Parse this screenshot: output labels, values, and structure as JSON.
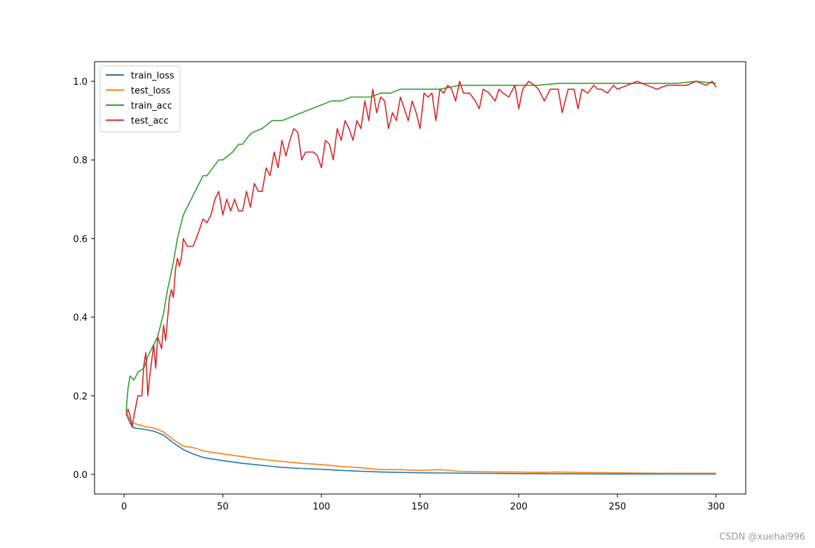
{
  "watermark": "CSDN @xuehai996",
  "chart_data": {
    "type": "line",
    "xlim": [
      -15,
      315
    ],
    "ylim": [
      -0.05,
      1.05
    ],
    "xticks": [
      0,
      50,
      100,
      150,
      200,
      250,
      300
    ],
    "yticks": [
      0.0,
      0.2,
      0.4,
      0.6,
      0.8,
      1.0
    ],
    "xtick_labels": [
      "0",
      "50",
      "100",
      "150",
      "200",
      "250",
      "300"
    ],
    "ytick_labels": [
      "0.0",
      "0.2",
      "0.4",
      "0.6",
      "0.8",
      "1.0"
    ],
    "grid": false,
    "legend_position": "upper-left",
    "colors": {
      "train_loss": "#1f77b4",
      "test_loss": "#ff7f0e",
      "train_acc": "#2ca02c",
      "test_acc": "#d62728"
    },
    "series": [
      {
        "name": "train_loss",
        "x": [
          1,
          3,
          5,
          10,
          15,
          20,
          25,
          30,
          35,
          40,
          50,
          60,
          70,
          80,
          90,
          100,
          110,
          120,
          130,
          150,
          175,
          200,
          250,
          300
        ],
        "y": [
          0.155,
          0.13,
          0.118,
          0.115,
          0.11,
          0.1,
          0.08,
          0.063,
          0.052,
          0.043,
          0.035,
          0.028,
          0.023,
          0.018,
          0.015,
          0.013,
          0.01,
          0.008,
          0.006,
          0.004,
          0.003,
          0.002,
          0.001,
          0.001
        ]
      },
      {
        "name": "test_loss",
        "x": [
          1,
          3,
          5,
          10,
          15,
          20,
          25,
          30,
          35,
          40,
          50,
          60,
          70,
          80,
          90,
          100,
          110,
          120,
          130,
          140,
          150,
          160,
          170,
          180,
          190,
          200,
          210,
          220,
          230,
          250,
          275,
          300
        ],
        "y": [
          0.16,
          0.138,
          0.13,
          0.122,
          0.118,
          0.108,
          0.088,
          0.072,
          0.068,
          0.06,
          0.052,
          0.045,
          0.038,
          0.033,
          0.028,
          0.025,
          0.02,
          0.017,
          0.012,
          0.012,
          0.01,
          0.012,
          0.008,
          0.007,
          0.006,
          0.006,
          0.005,
          0.006,
          0.005,
          0.004,
          0.003,
          0.003
        ]
      },
      {
        "name": "train_acc",
        "x": [
          1,
          2,
          3,
          5,
          7,
          10,
          12,
          15,
          17,
          20,
          22,
          25,
          27,
          30,
          32,
          35,
          38,
          40,
          42,
          45,
          48,
          50,
          55,
          58,
          60,
          63,
          65,
          70,
          75,
          78,
          80,
          85,
          90,
          95,
          100,
          105,
          110,
          115,
          120,
          125,
          130,
          135,
          140,
          145,
          150,
          160,
          170,
          180,
          190,
          200,
          210,
          220,
          230,
          240,
          250,
          260,
          270,
          280,
          290,
          300
        ],
        "y": [
          0.16,
          0.22,
          0.25,
          0.24,
          0.26,
          0.27,
          0.3,
          0.33,
          0.35,
          0.41,
          0.47,
          0.54,
          0.6,
          0.66,
          0.68,
          0.71,
          0.74,
          0.76,
          0.76,
          0.78,
          0.8,
          0.8,
          0.82,
          0.84,
          0.84,
          0.86,
          0.87,
          0.88,
          0.9,
          0.9,
          0.9,
          0.91,
          0.92,
          0.93,
          0.94,
          0.95,
          0.95,
          0.96,
          0.96,
          0.96,
          0.97,
          0.97,
          0.98,
          0.98,
          0.98,
          0.98,
          0.99,
          0.99,
          0.99,
          0.99,
          0.99,
          0.995,
          0.995,
          0.995,
          0.995,
          0.995,
          0.995,
          0.995,
          1.0,
          0.995
        ]
      },
      {
        "name": "test_acc",
        "x": [
          1,
          2,
          3,
          4,
          5,
          7,
          9,
          10,
          11,
          12,
          13,
          15,
          16,
          17,
          19,
          20,
          21,
          23,
          24,
          25,
          26,
          27,
          28,
          29,
          30,
          32,
          35,
          38,
          40,
          42,
          44,
          46,
          48,
          50,
          52,
          54,
          56,
          58,
          60,
          62,
          64,
          66,
          68,
          70,
          72,
          74,
          76,
          78,
          80,
          82,
          84,
          86,
          88,
          90,
          92,
          94,
          96,
          98,
          100,
          102,
          104,
          106,
          108,
          110,
          112,
          114,
          116,
          118,
          120,
          122,
          124,
          126,
          128,
          130,
          132,
          134,
          136,
          138,
          140,
          142,
          144,
          146,
          148,
          150,
          152,
          154,
          156,
          158,
          160,
          162,
          164,
          166,
          168,
          170,
          172,
          175,
          178,
          180,
          182,
          185,
          188,
          190,
          192,
          195,
          198,
          200,
          202,
          205,
          208,
          210,
          213,
          216,
          220,
          222,
          225,
          228,
          230,
          232,
          235,
          238,
          240,
          242,
          245,
          248,
          250,
          255,
          260,
          265,
          270,
          275,
          280,
          285,
          290,
          295,
          298,
          300
        ],
        "y": [
          0.15,
          0.166,
          0.15,
          0.12,
          0.15,
          0.2,
          0.2,
          0.28,
          0.31,
          0.2,
          0.25,
          0.33,
          0.27,
          0.35,
          0.32,
          0.38,
          0.34,
          0.45,
          0.47,
          0.45,
          0.52,
          0.55,
          0.53,
          0.55,
          0.6,
          0.58,
          0.58,
          0.62,
          0.65,
          0.64,
          0.66,
          0.7,
          0.72,
          0.66,
          0.7,
          0.67,
          0.7,
          0.67,
          0.67,
          0.72,
          0.68,
          0.74,
          0.72,
          0.72,
          0.78,
          0.76,
          0.82,
          0.78,
          0.85,
          0.81,
          0.85,
          0.88,
          0.87,
          0.8,
          0.82,
          0.82,
          0.82,
          0.81,
          0.78,
          0.85,
          0.84,
          0.8,
          0.88,
          0.85,
          0.9,
          0.88,
          0.85,
          0.9,
          0.88,
          0.95,
          0.9,
          0.98,
          0.92,
          0.96,
          0.95,
          0.88,
          0.92,
          0.9,
          0.96,
          0.93,
          0.9,
          0.95,
          0.92,
          0.88,
          0.97,
          0.96,
          0.97,
          0.9,
          0.98,
          0.97,
          0.99,
          0.98,
          0.95,
          1.0,
          0.97,
          0.97,
          0.95,
          0.93,
          0.98,
          0.97,
          0.95,
          0.98,
          0.97,
          0.96,
          0.99,
          0.93,
          0.98,
          1.0,
          0.99,
          0.98,
          0.95,
          0.98,
          0.98,
          0.92,
          0.98,
          0.98,
          0.93,
          0.98,
          0.97,
          0.99,
          0.98,
          0.98,
          0.97,
          0.99,
          0.98,
          0.99,
          1.0,
          0.99,
          0.98,
          0.99,
          0.99,
          0.99,
          1.0,
          0.99,
          1.0,
          0.985
        ]
      }
    ]
  }
}
